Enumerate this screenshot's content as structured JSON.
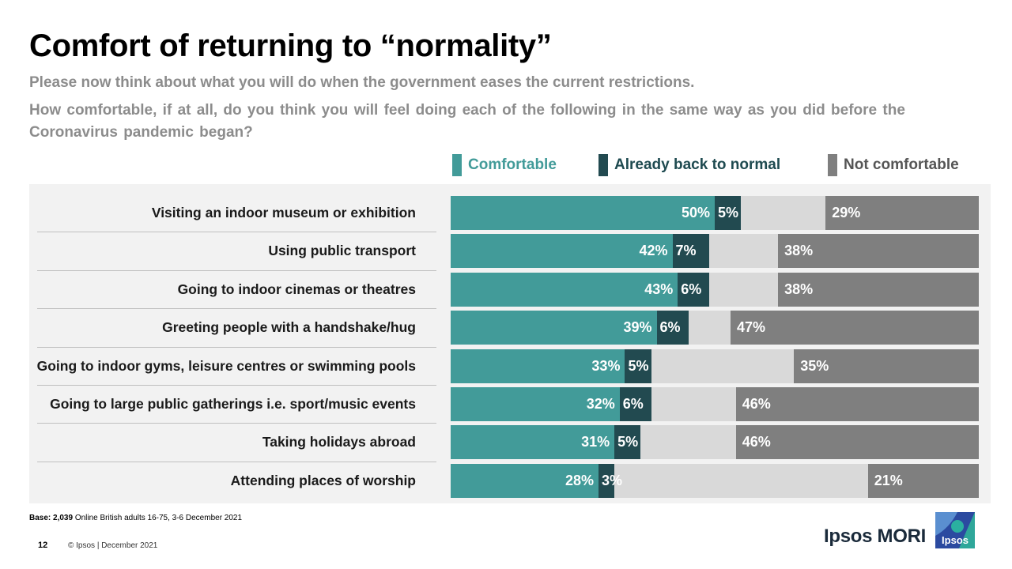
{
  "title": "Comfort of returning to “normality”",
  "question_1": "Please now think about what you will do when the government eases the current restrictions.",
  "question_2": "How comfortable, if at all, do you think you will feel doing each of the following in the same way as you did before the Coronavirus pandemic began?",
  "legend": [
    {
      "label": "Comfortable",
      "color": "#429b99",
      "text_color": "#429b99"
    },
    {
      "label": "Already back to normal",
      "color": "#224a50",
      "text_color": "#1e4a50"
    },
    {
      "label": "Not comfortable",
      "color": "#7f7f7f",
      "text_color": "#555555"
    }
  ],
  "chart_data": {
    "type": "bar",
    "orientation": "horizontal",
    "stacked": true,
    "categories": [
      "Visiting an indoor museum or exhibition",
      "Using public transport",
      "Going to indoor cinemas or theatres",
      "Greeting people with a handshake/hug",
      "Going to indoor gyms, leisure centres or swimming pools",
      "Going to large public gatherings i.e. sport/music events",
      "Taking holidays abroad",
      "Attending places of worship"
    ],
    "series": [
      {
        "name": "Comfortable",
        "color": "#429b99",
        "values": [
          50,
          42,
          43,
          39,
          33,
          32,
          31,
          28
        ],
        "labels": [
          "50%",
          "42%",
          "43%",
          "39%",
          "33%",
          "32%",
          "31%",
          "28%"
        ]
      },
      {
        "name": "Already back to normal",
        "color": "#224a50",
        "values": [
          5,
          7,
          6,
          6,
          5,
          6,
          5,
          3
        ],
        "labels": [
          "5%",
          "7%",
          "6%",
          "6%",
          "5%",
          "6%",
          "5%",
          "3%"
        ]
      },
      {
        "name": "Not comfortable",
        "color": "#7f7f7f",
        "values": [
          29,
          38,
          38,
          47,
          35,
          46,
          46,
          21
        ],
        "labels": [
          "29%",
          "38%",
          "38%",
          "47%",
          "35%",
          "46%",
          "46%",
          "21%"
        ]
      }
    ],
    "remainder_color": "#d9d9d9",
    "xlim": [
      0,
      100
    ]
  },
  "footer": {
    "base_bold": "Base: 2,039",
    "base_rest": " Online British adults 16-75, 3-6 December 2021",
    "page_number": "12",
    "copyright": "© Ipsos | December 2021",
    "brand": "Ipsos MORI",
    "logo_text": "Ipsos"
  }
}
